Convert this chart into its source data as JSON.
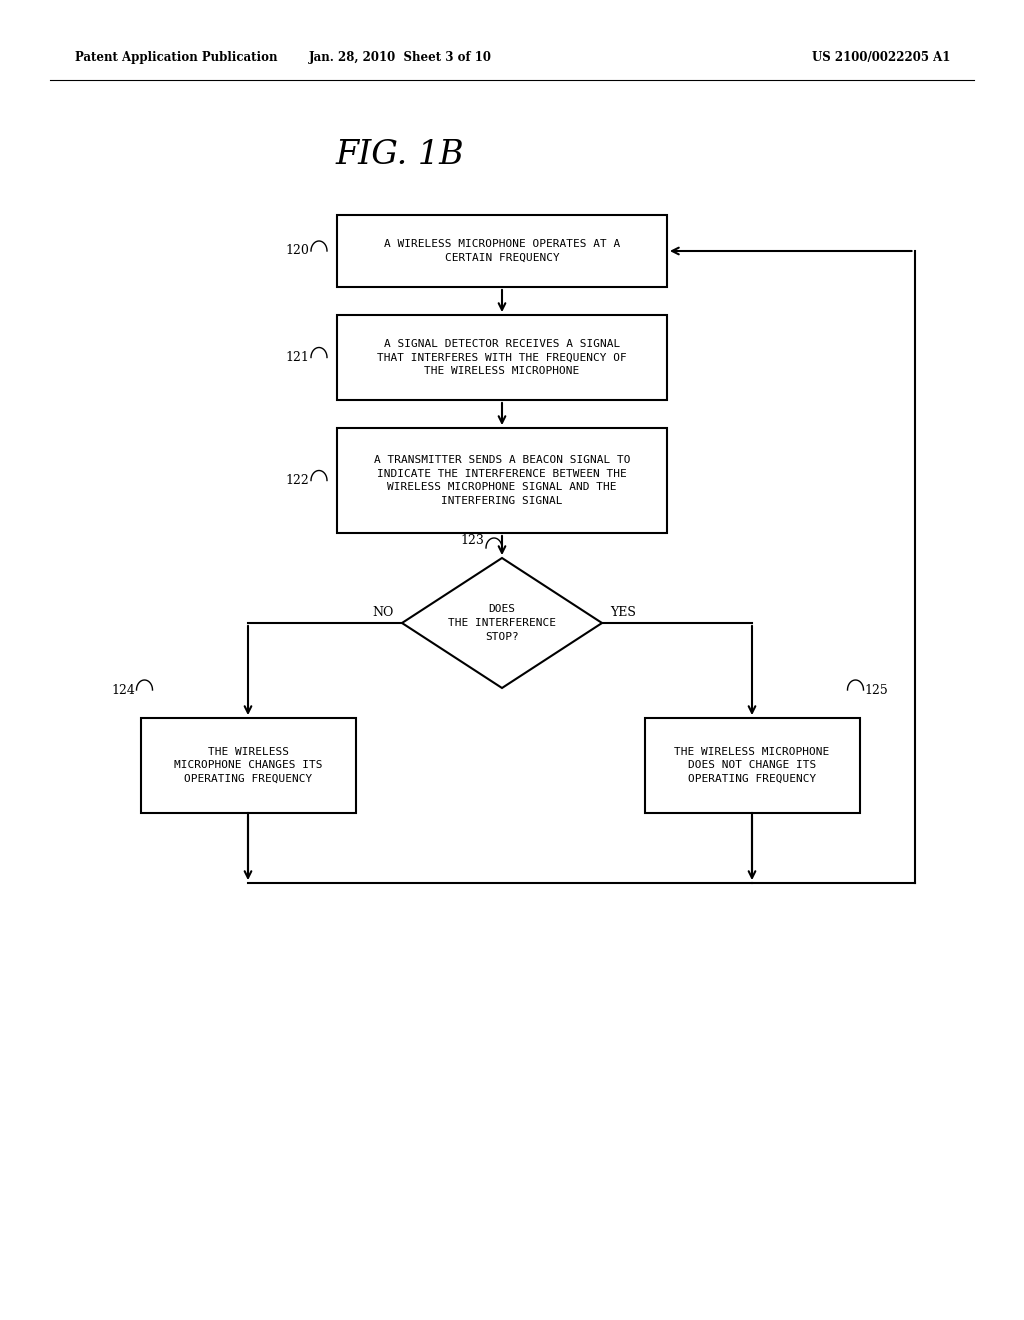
{
  "bg_color": "#ffffff",
  "header_left": "Patent Application Publication",
  "header_mid": "Jan. 28, 2010  Sheet 3 of 10",
  "header_right": "US 2100/0022205 A1",
  "fig_title": "FIG. 1B",
  "box120_text": "A WIRELESS MICROPHONE OPERATES AT A\nCERTAIN FREQUENCY",
  "box121_text": "A SIGNAL DETECTOR RECEIVES A SIGNAL\nTHAT INTERFERES WITH THE FREQUENCY OF\nTHE WIRELESS MICROPHONE",
  "box122_text": "A TRANSMITTER SENDS A BEACON SIGNAL TO\nINDICATE THE INTERFERENCE BETWEEN THE\nWIRELESS MICROPHONE SIGNAL AND THE\nINTERFERING SIGNAL",
  "diamond123_text": "DOES\nTHE INTERFERENCE\nSTOP?",
  "box124_text": "THE WIRELESS\nMICROPHONE CHANGES ITS\nOPERATING FREQUENCY",
  "box125_text": "THE WIRELESS MICROPHONE\nDOES NOT CHANGE ITS\nOPERATING FREQUENCY",
  "label120": "120",
  "label121": "121",
  "label122": "122",
  "label123": "123",
  "label124": "124",
  "label125": "125",
  "no_label": "NO",
  "yes_label": "YES"
}
